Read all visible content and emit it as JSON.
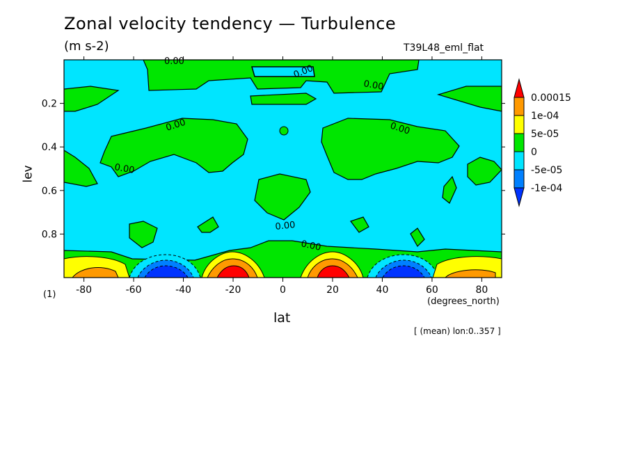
{
  "chart_data": {
    "type": "heatmap",
    "title": "Zonal velocity tendency — Turbulence",
    "units": "(m s-2)",
    "run_label": "T39L48_eml_flat",
    "xlabel": "lat",
    "x_units": "(degrees_north)",
    "ylabel": "lev",
    "corner_label": "(1)",
    "note": "[ (mean) lon:0..357 ]",
    "xlim": [
      -88,
      88
    ],
    "ylim": [
      1.0,
      0.0
    ],
    "x_ticks": [
      -80,
      -60,
      -40,
      -20,
      0,
      20,
      40,
      60,
      80
    ],
    "y_ticks": [
      0.2,
      0.4,
      0.6,
      0.8
    ],
    "contour_labels": [
      "0.00",
      "0.00",
      "0.00",
      "0.00",
      "0.00",
      "0.00",
      "0.00",
      "0.00"
    ],
    "colorbar": {
      "labels": [
        "0.00015",
        "1e-04",
        "5e-05",
        "0",
        "-5e-05",
        "-1e-04"
      ],
      "colors": [
        "#ff0000",
        "#ff9900",
        "#ffff00",
        "#00e600",
        "#00e5ff",
        "#0080ff",
        "#0033ff"
      ]
    },
    "regions": [
      {
        "sign": "positive",
        "lat_range": [
          -88,
          -62
        ],
        "lev_range": [
          0.86,
          1.0
        ],
        "peak": 0.0001
      },
      {
        "sign": "negative",
        "lat_range": [
          -60,
          -34
        ],
        "lev_range": [
          0.9,
          1.0
        ],
        "peak": -0.0001
      },
      {
        "sign": "positive",
        "lat_range": [
          -34,
          -8
        ],
        "lev_range": [
          0.86,
          1.0
        ],
        "peak": 0.00015
      },
      {
        "sign": "positive",
        "lat_range": [
          8,
          34
        ],
        "lev_range": [
          0.86,
          1.0
        ],
        "peak": 0.00015
      },
      {
        "sign": "negative",
        "lat_range": [
          34,
          60
        ],
        "lev_range": [
          0.9,
          1.0
        ],
        "peak": -0.0001
      },
      {
        "sign": "positive",
        "lat_range": [
          62,
          88
        ],
        "lev_range": [
          0.86,
          1.0
        ],
        "peak": 0.0001
      }
    ]
  }
}
